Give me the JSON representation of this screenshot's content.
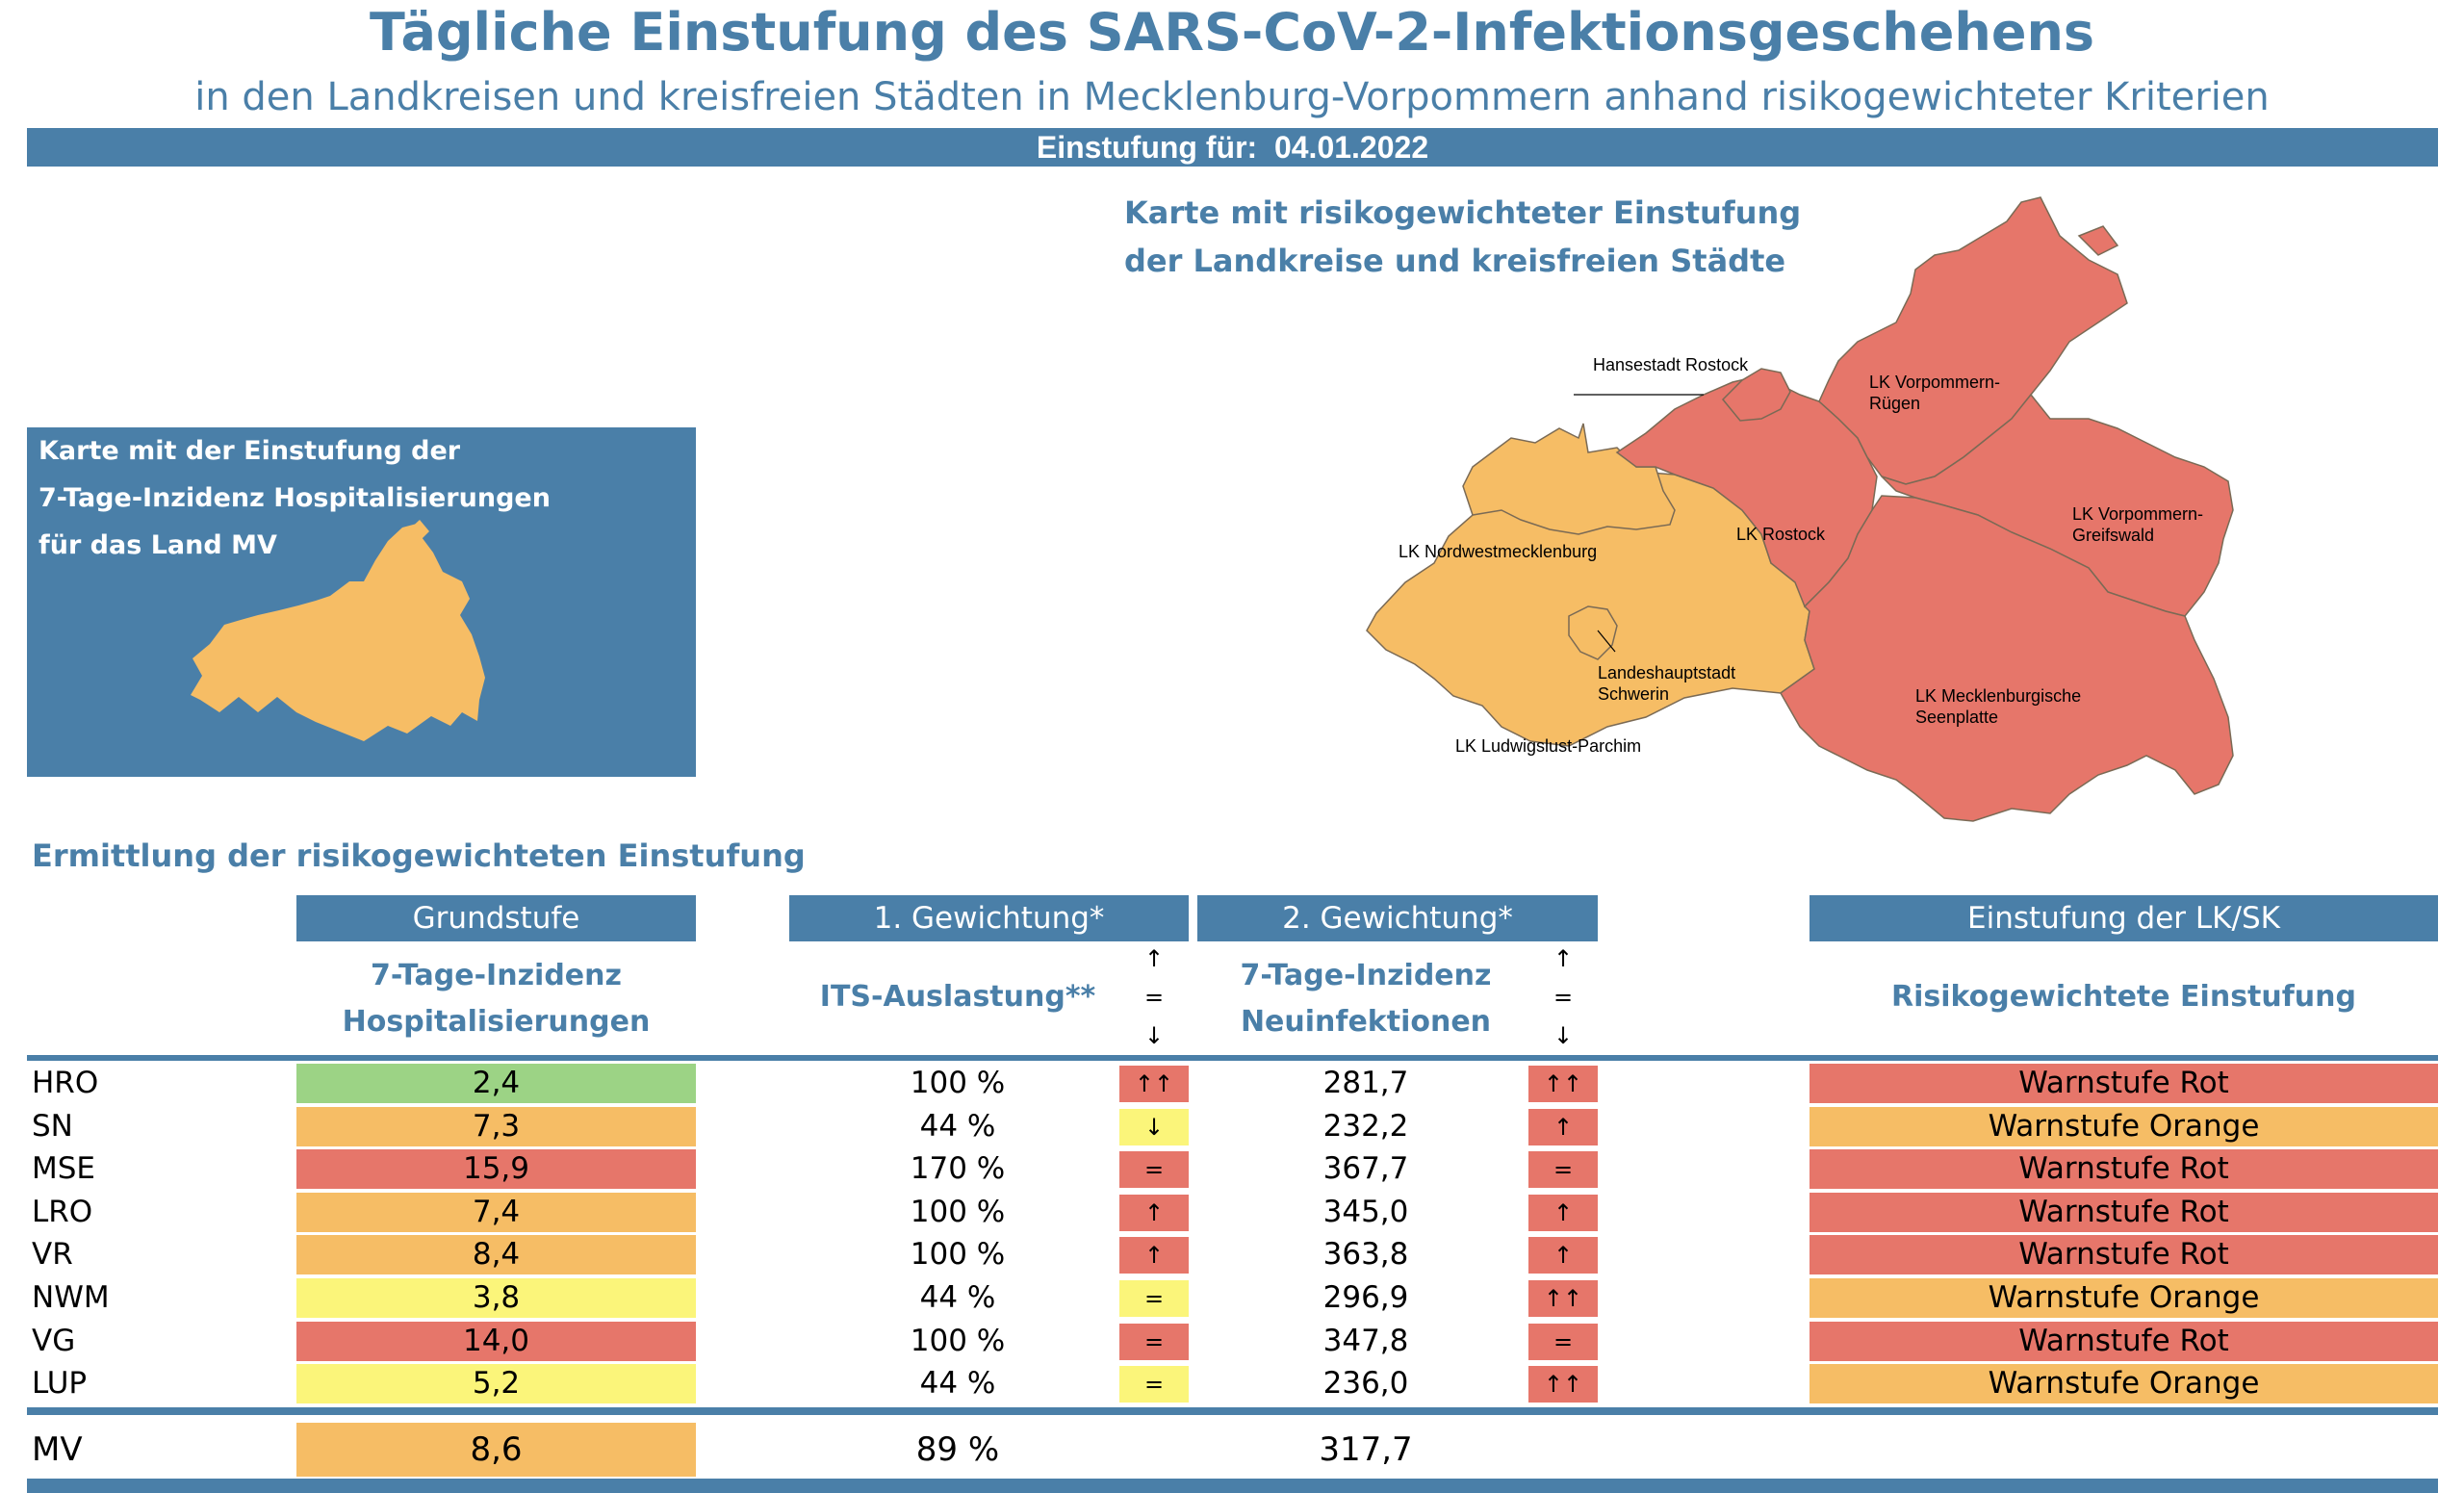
{
  "header": {
    "title": "Tägliche Einstufung des SARS-CoV-2-Infektionsgeschehens",
    "subtitle": "in den Landkreisen und kreisfreien Städten in Mecklenburg-Vorpommern anhand risikogewichteter Kriterien",
    "date_label": "Einstufung für:",
    "date_value": "04.01.2022"
  },
  "map": {
    "title_line1": "Karte mit risikogewichteter Einstufung",
    "title_line2": "der Landkreise und kreisfreien Städte",
    "labels": {
      "hro": "Hansestadt Rostock",
      "vr_1": "LK Vorpommern-",
      "vr_2": "Rügen",
      "nwm": "LK Nordwestmecklenburg",
      "lro": "LK Rostock",
      "vg_1": "LK Vorpommern-",
      "vg_2": "Greifswald",
      "sn_1": "Landeshauptstadt",
      "sn_2": "Schwerin",
      "lup": "LK Ludwigslust-Parchim",
      "mse_1": "LK Mecklenburgische",
      "mse_2": "Seenplatte"
    }
  },
  "mv_box": {
    "line1": "Karte mit der Einstufung der",
    "line2": "7-Tage-Inzidenz Hospitalisierungen",
    "line3": "für das Land MV"
  },
  "section_title": "Ermittlung der risikogewichteten Einstufung",
  "columns": {
    "grundstufe": "Grundstufe",
    "gewichtung1": "1. Gewichtung*",
    "gewichtung2": "2. Gewichtung*",
    "einstufung": "Einstufung der LK/SK",
    "hosp_line1": "7-Tage-Inzidenz",
    "hosp_line2": "Hospitalisierungen",
    "its": "ITS-Auslastung**",
    "neu_line1": "7-Tage-Inzidenz",
    "neu_line2": "Neuinfektionen",
    "risk": "Risikogewichtete Einstufung",
    "legend_up": "↑",
    "legend_eq": "=",
    "legend_down": "↓"
  },
  "colors": {
    "accent": "#4a7fa8",
    "red": "#e6766a",
    "orange": "#f6bd65",
    "yellow": "#fbf57a",
    "green": "#9cd385"
  },
  "rows": [
    {
      "name": "HRO",
      "hosp": "2,4",
      "hosp_color": "green",
      "its": "100 %",
      "t1": "↑↑",
      "t1_color": "red",
      "inz": "281,7",
      "t2": "↑↑",
      "t2_color": "red",
      "stufe": "Warnstufe Rot",
      "stufe_color": "red"
    },
    {
      "name": "SN",
      "hosp": "7,3",
      "hosp_color": "orange",
      "its": "44 %",
      "t1": "↓",
      "t1_color": "yellow",
      "inz": "232,2",
      "t2": "↑",
      "t2_color": "red",
      "stufe": "Warnstufe Orange",
      "stufe_color": "orange"
    },
    {
      "name": "MSE",
      "hosp": "15,9",
      "hosp_color": "red",
      "its": "170 %",
      "t1": "=",
      "t1_color": "red",
      "inz": "367,7",
      "t2": "=",
      "t2_color": "red",
      "stufe": "Warnstufe Rot",
      "stufe_color": "red"
    },
    {
      "name": "LRO",
      "hosp": "7,4",
      "hosp_color": "orange",
      "its": "100 %",
      "t1": "↑",
      "t1_color": "red",
      "inz": "345,0",
      "t2": "↑",
      "t2_color": "red",
      "stufe": "Warnstufe Rot",
      "stufe_color": "red"
    },
    {
      "name": "VR",
      "hosp": "8,4",
      "hosp_color": "orange",
      "its": "100 %",
      "t1": "↑",
      "t1_color": "red",
      "inz": "363,8",
      "t2": "↑",
      "t2_color": "red",
      "stufe": "Warnstufe Rot",
      "stufe_color": "red"
    },
    {
      "name": "NWM",
      "hosp": "3,8",
      "hosp_color": "yellow",
      "its": "44 %",
      "t1": "=",
      "t1_color": "yellow",
      "inz": "296,9",
      "t2": "↑↑",
      "t2_color": "red",
      "stufe": "Warnstufe Orange",
      "stufe_color": "orange"
    },
    {
      "name": "VG",
      "hosp": "14,0",
      "hosp_color": "red",
      "its": "100 %",
      "t1": "=",
      "t1_color": "red",
      "inz": "347,8",
      "t2": "=",
      "t2_color": "red",
      "stufe": "Warnstufe Rot",
      "stufe_color": "red"
    },
    {
      "name": "LUP",
      "hosp": "5,2",
      "hosp_color": "yellow",
      "its": "44 %",
      "t1": "=",
      "t1_color": "yellow",
      "inz": "236,0",
      "t2": "↑↑",
      "t2_color": "red",
      "stufe": "Warnstufe Orange",
      "stufe_color": "orange"
    }
  ],
  "total": {
    "name": "MV",
    "hosp": "8,6",
    "hosp_color": "orange",
    "its": "89 %",
    "inz": "317,7"
  }
}
